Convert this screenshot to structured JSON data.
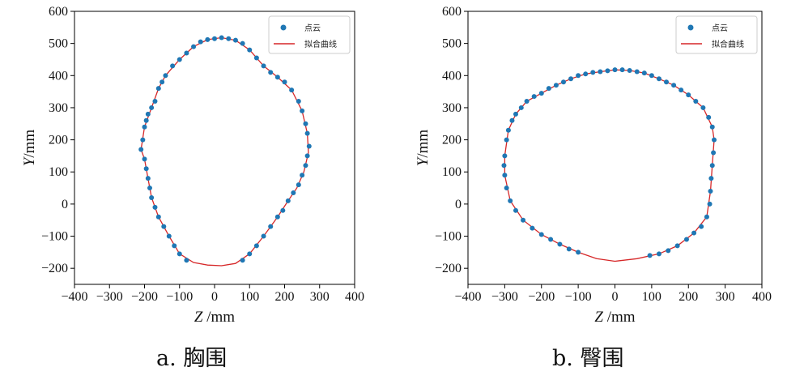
{
  "colors": {
    "points": "#1f77b4",
    "curve": "#d62728",
    "axis": "#000000",
    "legend_border": "#cccccc"
  },
  "captions": [
    "a. 胸围",
    "b. 臀围"
  ],
  "chart_data": [
    {
      "type": "scatter",
      "title": "",
      "caption": "a. 胸围",
      "xlabel_var": "Z",
      "xlabel_unit": " /mm",
      "ylabel_var": "Y",
      "ylabel_unit": "/mm",
      "xlim": [
        -400,
        400
      ],
      "ylim": [
        -250,
        600
      ],
      "xticks": [
        -400,
        -300,
        -200,
        -100,
        0,
        100,
        200,
        300,
        400
      ],
      "yticks": [
        -200,
        -100,
        0,
        100,
        200,
        300,
        400,
        500,
        600
      ],
      "grid": false,
      "legend_position": "top-right",
      "series": [
        {
          "name": "点云",
          "kind": "points",
          "points": [
            [
              -210,
              170
            ],
            [
              -205,
              200
            ],
            [
              -200,
              240
            ],
            [
              -195,
              260
            ],
            [
              -190,
              280
            ],
            [
              -180,
              300
            ],
            [
              -170,
              320
            ],
            [
              -160,
              360
            ],
            [
              -150,
              380
            ],
            [
              -140,
              400
            ],
            [
              -120,
              430
            ],
            [
              -100,
              450
            ],
            [
              -80,
              470
            ],
            [
              -60,
              490
            ],
            [
              -40,
              505
            ],
            [
              -20,
              512
            ],
            [
              0,
              515
            ],
            [
              20,
              518
            ],
            [
              40,
              515
            ],
            [
              60,
              510
            ],
            [
              80,
              500
            ],
            [
              100,
              480
            ],
            [
              120,
              455
            ],
            [
              140,
              430
            ],
            [
              160,
              410
            ],
            [
              180,
              395
            ],
            [
              200,
              380
            ],
            [
              220,
              355
            ],
            [
              240,
              320
            ],
            [
              250,
              290
            ],
            [
              260,
              250
            ],
            [
              265,
              220
            ],
            [
              270,
              180
            ],
            [
              265,
              150
            ],
            [
              260,
              120
            ],
            [
              250,
              90
            ],
            [
              240,
              60
            ],
            [
              225,
              35
            ],
            [
              210,
              10
            ],
            [
              195,
              -20
            ],
            [
              180,
              -40
            ],
            [
              160,
              -70
            ],
            [
              140,
              -100
            ],
            [
              120,
              -130
            ],
            [
              100,
              -155
            ],
            [
              80,
              -175
            ],
            [
              -80,
              -175
            ],
            [
              -100,
              -155
            ],
            [
              -115,
              -130
            ],
            [
              -130,
              -100
            ],
            [
              -145,
              -70
            ],
            [
              -160,
              -40
            ],
            [
              -170,
              -10
            ],
            [
              -180,
              20
            ],
            [
              -185,
              50
            ],
            [
              -190,
              80
            ],
            [
              -195,
              110
            ],
            [
              -200,
              140
            ]
          ]
        },
        {
          "name": "拟合曲线",
          "kind": "curve",
          "points": [
            [
              -210,
              170
            ],
            [
              -200,
              240
            ],
            [
              -180,
              300
            ],
            [
              -160,
              360
            ],
            [
              -140,
              400
            ],
            [
              -100,
              450
            ],
            [
              -60,
              490
            ],
            [
              -20,
              512
            ],
            [
              20,
              518
            ],
            [
              60,
              510
            ],
            [
              100,
              480
            ],
            [
              140,
              430
            ],
            [
              180,
              395
            ],
            [
              220,
              355
            ],
            [
              250,
              290
            ],
            [
              265,
              220
            ],
            [
              268,
              160
            ],
            [
              255,
              100
            ],
            [
              235,
              50
            ],
            [
              210,
              10
            ],
            [
              180,
              -40
            ],
            [
              140,
              -100
            ],
            [
              100,
              -155
            ],
            [
              60,
              -185
            ],
            [
              20,
              -192
            ],
            [
              -20,
              -190
            ],
            [
              -60,
              -182
            ],
            [
              -100,
              -155
            ],
            [
              -130,
              -100
            ],
            [
              -160,
              -40
            ],
            [
              -180,
              20
            ],
            [
              -190,
              80
            ],
            [
              -200,
              140
            ],
            [
              -210,
              170
            ]
          ]
        }
      ]
    },
    {
      "type": "scatter",
      "title": "",
      "caption": "b. 臀围",
      "xlabel_var": "Z",
      "xlabel_unit": " /mm",
      "ylabel_var": "Y",
      "ylabel_unit": "/mm",
      "xlim": [
        -400,
        400
      ],
      "ylim": [
        -250,
        600
      ],
      "xticks": [
        -400,
        -300,
        -200,
        -100,
        0,
        100,
        200,
        300,
        400
      ],
      "yticks": [
        -200,
        -100,
        0,
        100,
        200,
        300,
        400,
        500,
        600
      ],
      "grid": false,
      "legend_position": "top-right",
      "series": [
        {
          "name": "点云",
          "kind": "points",
          "points": [
            [
              -300,
              150
            ],
            [
              -295,
              200
            ],
            [
              -290,
              230
            ],
            [
              -280,
              260
            ],
            [
              -270,
              280
            ],
            [
              -255,
              300
            ],
            [
              -240,
              320
            ],
            [
              -220,
              335
            ],
            [
              -200,
              345
            ],
            [
              -180,
              360
            ],
            [
              -160,
              370
            ],
            [
              -140,
              380
            ],
            [
              -120,
              390
            ],
            [
              -100,
              400
            ],
            [
              -80,
              405
            ],
            [
              -60,
              410
            ],
            [
              -40,
              412
            ],
            [
              -20,
              415
            ],
            [
              0,
              418
            ],
            [
              20,
              418
            ],
            [
              40,
              416
            ],
            [
              60,
              412
            ],
            [
              80,
              408
            ],
            [
              100,
              400
            ],
            [
              120,
              390
            ],
            [
              140,
              380
            ],
            [
              160,
              370
            ],
            [
              180,
              355
            ],
            [
              200,
              340
            ],
            [
              220,
              320
            ],
            [
              240,
              300
            ],
            [
              255,
              270
            ],
            [
              265,
              240
            ],
            [
              270,
              200
            ],
            [
              268,
              160
            ],
            [
              265,
              120
            ],
            [
              262,
              80
            ],
            [
              260,
              40
            ],
            [
              258,
              0
            ],
            [
              250,
              -40
            ],
            [
              235,
              -70
            ],
            [
              215,
              -90
            ],
            [
              195,
              -110
            ],
            [
              170,
              -130
            ],
            [
              145,
              -145
            ],
            [
              120,
              -155
            ],
            [
              95,
              -160
            ],
            [
              -100,
              -150
            ],
            [
              -125,
              -140
            ],
            [
              -150,
              -125
            ],
            [
              -175,
              -110
            ],
            [
              -200,
              -95
            ],
            [
              -225,
              -75
            ],
            [
              -250,
              -50
            ],
            [
              -270,
              -20
            ],
            [
              -285,
              10
            ],
            [
              -295,
              50
            ],
            [
              -300,
              90
            ],
            [
              -302,
              120
            ]
          ]
        },
        {
          "name": "拟合曲线",
          "kind": "curve",
          "points": [
            [
              -300,
              150
            ],
            [
              -290,
              230
            ],
            [
              -270,
              280
            ],
            [
              -240,
              320
            ],
            [
              -200,
              345
            ],
            [
              -160,
              370
            ],
            [
              -120,
              390
            ],
            [
              -80,
              405
            ],
            [
              -40,
              412
            ],
            [
              0,
              418
            ],
            [
              40,
              416
            ],
            [
              80,
              408
            ],
            [
              120,
              390
            ],
            [
              160,
              370
            ],
            [
              200,
              340
            ],
            [
              240,
              300
            ],
            [
              265,
              240
            ],
            [
              270,
              200
            ],
            [
              265,
              120
            ],
            [
              260,
              40
            ],
            [
              250,
              -40
            ],
            [
              215,
              -90
            ],
            [
              170,
              -130
            ],
            [
              120,
              -155
            ],
            [
              60,
              -170
            ],
            [
              0,
              -178
            ],
            [
              -50,
              -170
            ],
            [
              -100,
              -150
            ],
            [
              -150,
              -125
            ],
            [
              -200,
              -95
            ],
            [
              -250,
              -50
            ],
            [
              -285,
              10
            ],
            [
              -300,
              90
            ],
            [
              -300,
              150
            ]
          ]
        }
      ]
    }
  ]
}
